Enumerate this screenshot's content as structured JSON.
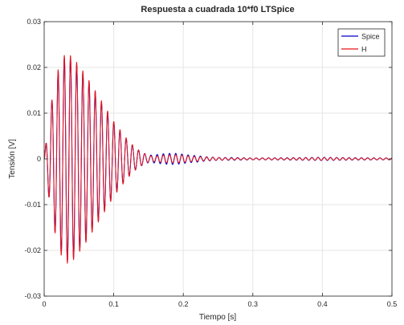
{
  "chart_data": {
    "type": "line",
    "title": "Respuesta a cuadrada 10*f0 LTSpice",
    "xlabel": "Tiempo [s]",
    "ylabel": "Tensión [V]",
    "xlim": [
      0,
      0.5
    ],
    "ylim": [
      -0.03,
      0.03
    ],
    "x_ticks": [
      0,
      0.1,
      0.2,
      0.3,
      0.4,
      0.5
    ],
    "x_tick_labels": [
      "0",
      "0.1",
      "0.2",
      "0.3",
      "0.4",
      "0.5"
    ],
    "y_ticks": [
      -0.03,
      -0.02,
      -0.01,
      0,
      0.01,
      0.02,
      0.03
    ],
    "y_tick_labels": [
      "-0.03",
      "-0.02",
      "-0.01",
      "0",
      "0.01",
      "0.02",
      "0.03"
    ],
    "grid": true,
    "legend_position": "top-right",
    "series": [
      {
        "name": "Spice",
        "color": "#0000cc",
        "oscillation_period": 0.0089,
        "envelope": [
          [
            0,
            0.0
          ],
          [
            0.003,
            0.004
          ],
          [
            0.01,
            0.012
          ],
          [
            0.02,
            0.019
          ],
          [
            0.03,
            0.0225
          ],
          [
            0.04,
            0.022
          ],
          [
            0.05,
            0.02
          ],
          [
            0.06,
            0.018
          ],
          [
            0.07,
            0.0155
          ],
          [
            0.08,
            0.013
          ],
          [
            0.09,
            0.0105
          ],
          [
            0.1,
            0.008
          ],
          [
            0.11,
            0.006
          ],
          [
            0.12,
            0.004
          ],
          [
            0.13,
            0.0025
          ],
          [
            0.14,
            0.0015
          ],
          [
            0.15,
            0.0008
          ],
          [
            0.16,
            0.0009
          ],
          [
            0.17,
            0.0011
          ],
          [
            0.18,
            0.0012
          ],
          [
            0.19,
            0.0012
          ],
          [
            0.2,
            0.001
          ],
          [
            0.21,
            0.0008
          ],
          [
            0.22,
            0.0007
          ],
          [
            0.23,
            0.0005
          ],
          [
            0.25,
            0.0003
          ],
          [
            0.27,
            0.0003
          ],
          [
            0.3,
            0.0002
          ],
          [
            0.35,
            0.00025
          ],
          [
            0.4,
            0.00035
          ],
          [
            0.45,
            0.00025
          ],
          [
            0.5,
            0.0002
          ]
        ]
      },
      {
        "name": "H",
        "color": "#e8141a",
        "oscillation_period": 0.0089,
        "envelope": [
          [
            0,
            0.0
          ],
          [
            0.003,
            0.004
          ],
          [
            0.01,
            0.012
          ],
          [
            0.02,
            0.0195
          ],
          [
            0.03,
            0.023
          ],
          [
            0.04,
            0.0225
          ],
          [
            0.05,
            0.0205
          ],
          [
            0.06,
            0.0183
          ],
          [
            0.07,
            0.0158
          ],
          [
            0.08,
            0.0133
          ],
          [
            0.09,
            0.0108
          ],
          [
            0.1,
            0.0082
          ],
          [
            0.11,
            0.0062
          ],
          [
            0.12,
            0.0042
          ],
          [
            0.13,
            0.0026
          ],
          [
            0.14,
            0.0015
          ],
          [
            0.15,
            0.0007
          ],
          [
            0.16,
            0.0006
          ],
          [
            0.17,
            0.0008
          ],
          [
            0.18,
            0.0009
          ],
          [
            0.19,
            0.0009
          ],
          [
            0.2,
            0.0008
          ],
          [
            0.21,
            0.0006
          ],
          [
            0.22,
            0.0005
          ],
          [
            0.23,
            0.0004
          ],
          [
            0.25,
            0.0003
          ],
          [
            0.27,
            0.0002
          ],
          [
            0.3,
            0.0002
          ],
          [
            0.35,
            0.0002
          ],
          [
            0.4,
            0.0003
          ],
          [
            0.45,
            0.0002
          ],
          [
            0.5,
            0.0002
          ]
        ]
      }
    ]
  }
}
